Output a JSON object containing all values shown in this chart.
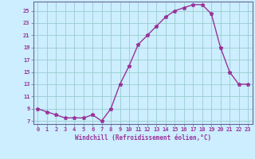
{
  "x": [
    0,
    1,
    2,
    3,
    4,
    5,
    6,
    7,
    8,
    9,
    10,
    11,
    12,
    13,
    14,
    15,
    16,
    17,
    18,
    19,
    20,
    21,
    22,
    23
  ],
  "y": [
    9,
    8.5,
    8,
    7.5,
    7.5,
    7.5,
    8,
    7,
    9,
    13,
    16,
    19.5,
    21,
    22.5,
    24,
    25,
    25.5,
    26,
    26,
    24.5,
    19,
    15,
    13,
    13
  ],
  "xlabel": "Windchill (Refroidissement éolien,°C)",
  "xlim": [
    -0.5,
    23.5
  ],
  "ylim": [
    6.5,
    26.5
  ],
  "yticks": [
    7,
    9,
    11,
    13,
    15,
    17,
    19,
    21,
    23,
    25
  ],
  "xticks": [
    0,
    1,
    2,
    3,
    4,
    5,
    6,
    7,
    8,
    9,
    10,
    11,
    12,
    13,
    14,
    15,
    16,
    17,
    18,
    19,
    20,
    21,
    22,
    23
  ],
  "line_color": "#993399",
  "bg_color": "#cceeff",
  "grid_color": "#99cccc",
  "marker": "*",
  "marker_size": 3.5,
  "linewidth": 1.0
}
